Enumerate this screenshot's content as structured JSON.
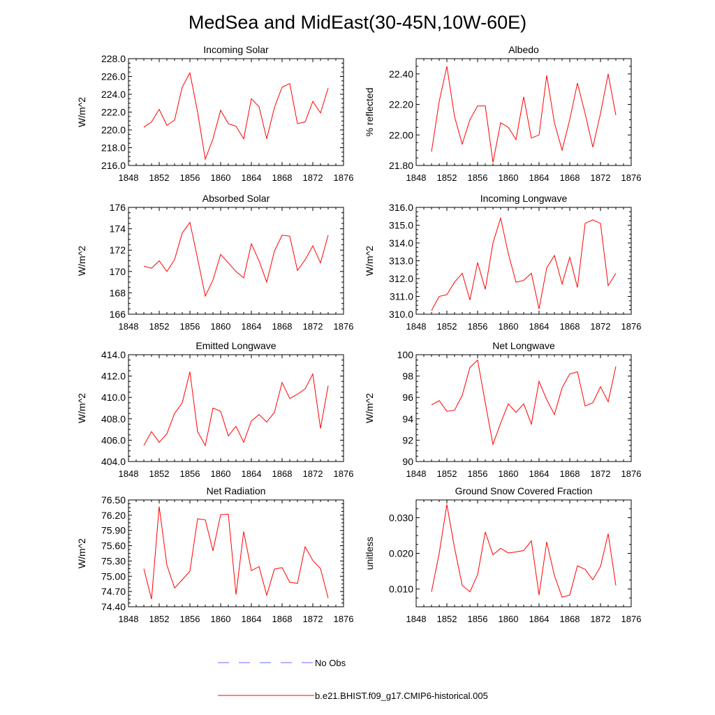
{
  "figure_title": "MedSea and MidEast(30-45N,10W-60E)",
  "legend": [
    {
      "label": "No Obs",
      "color": "#6a6aff",
      "style": "dashed"
    },
    {
      "label": "b.e21.BHIST.f09_g17.CMIP6-historical.005",
      "color": "#ff0000",
      "style": "solid"
    }
  ],
  "chart_data": [
    {
      "type": "line",
      "title": "Incoming Solar",
      "ylabel": "W/m^2",
      "xlabel": "",
      "xlim": [
        1848,
        1876
      ],
      "xticks": [
        1848,
        1852,
        1856,
        1860,
        1864,
        1868,
        1872,
        1876
      ],
      "ylim": [
        216.0,
        228.0
      ],
      "yticks": [
        216.0,
        218.0,
        220.0,
        222.0,
        224.0,
        226.0,
        228.0
      ],
      "ytick_labels": [
        "216.0",
        "218.0",
        "220.0",
        "222.0",
        "224.0",
        "226.0",
        "228.0"
      ],
      "series": [
        {
          "name": "b.e21.BHIST.f09_g17.CMIP6-historical.005",
          "color": "#ff0000",
          "x": [
            1850,
            1851,
            1852,
            1853,
            1854,
            1855,
            1856,
            1857,
            1858,
            1859,
            1860,
            1861,
            1862,
            1863,
            1864,
            1865,
            1866,
            1867,
            1868,
            1869,
            1870,
            1871,
            1872,
            1873,
            1874
          ],
          "values": [
            220.3,
            220.9,
            222.3,
            220.5,
            221.1,
            224.8,
            226.4,
            222.0,
            216.7,
            219.0,
            222.2,
            220.7,
            220.4,
            219.0,
            223.5,
            222.6,
            219.0,
            222.5,
            224.8,
            225.2,
            220.7,
            220.9,
            223.2,
            221.9,
            224.7
          ]
        }
      ]
    },
    {
      "type": "line",
      "title": "Albedo",
      "ylabel": "% reflected",
      "xlabel": "",
      "xlim": [
        1848,
        1876
      ],
      "xticks": [
        1848,
        1852,
        1856,
        1860,
        1864,
        1868,
        1872,
        1876
      ],
      "ylim": [
        21.8,
        22.5
      ],
      "yticks": [
        21.8,
        22.0,
        22.2,
        22.4
      ],
      "ytick_labels": [
        "21.80",
        "22.00",
        "22.20",
        "22.40"
      ],
      "series": [
        {
          "name": "b.e21.BHIST.f09_g17.CMIP6-historical.005",
          "color": "#ff0000",
          "x": [
            1850,
            1851,
            1852,
            1853,
            1854,
            1855,
            1856,
            1857,
            1858,
            1859,
            1860,
            1861,
            1862,
            1863,
            1864,
            1865,
            1866,
            1867,
            1868,
            1869,
            1870,
            1871,
            1872,
            1873,
            1874
          ],
          "values": [
            21.89,
            22.22,
            22.45,
            22.12,
            21.94,
            22.1,
            22.19,
            22.19,
            21.82,
            22.08,
            22.05,
            21.97,
            22.25,
            21.98,
            22.0,
            22.39,
            22.08,
            21.9,
            22.1,
            22.34,
            22.14,
            21.92,
            22.14,
            22.4,
            22.13
          ]
        }
      ]
    },
    {
      "type": "line",
      "title": "Absorbed Solar",
      "ylabel": "W/m^2",
      "xlabel": "",
      "xlim": [
        1848,
        1876
      ],
      "xticks": [
        1848,
        1852,
        1856,
        1860,
        1864,
        1868,
        1872,
        1876
      ],
      "ylim": [
        166,
        176
      ],
      "yticks": [
        166,
        168,
        170,
        172,
        174,
        176
      ],
      "ytick_labels": [
        "166",
        "168",
        "170",
        "172",
        "174",
        "176"
      ],
      "series": [
        {
          "name": "b.e21.BHIST.f09_g17.CMIP6-historical.005",
          "color": "#ff0000",
          "x": [
            1850,
            1851,
            1852,
            1853,
            1854,
            1855,
            1856,
            1857,
            1858,
            1859,
            1860,
            1861,
            1862,
            1863,
            1864,
            1865,
            1866,
            1867,
            1868,
            1869,
            1870,
            1871,
            1872,
            1873,
            1874
          ],
          "values": [
            170.5,
            170.3,
            171.0,
            170.0,
            171.1,
            173.6,
            174.6,
            171.2,
            167.7,
            169.2,
            171.6,
            170.8,
            170.0,
            169.4,
            172.6,
            171.0,
            169.0,
            171.9,
            173.4,
            173.3,
            170.1,
            171.1,
            172.4,
            170.8,
            173.4
          ]
        }
      ]
    },
    {
      "type": "line",
      "title": "Incoming Longwave",
      "ylabel": "W/m^2",
      "xlabel": "",
      "xlim": [
        1848,
        1876
      ],
      "xticks": [
        1848,
        1852,
        1856,
        1860,
        1864,
        1868,
        1872,
        1876
      ],
      "ylim": [
        310.0,
        316.0
      ],
      "yticks": [
        310.0,
        311.0,
        312.0,
        313.0,
        314.0,
        315.0,
        316.0
      ],
      "ytick_labels": [
        "310.0",
        "311.0",
        "312.0",
        "313.0",
        "314.0",
        "315.0",
        "316.0"
      ],
      "series": [
        {
          "name": "b.e21.BHIST.f09_g17.CMIP6-historical.005",
          "color": "#ff0000",
          "x": [
            1850,
            1851,
            1852,
            1853,
            1854,
            1855,
            1856,
            1857,
            1858,
            1859,
            1860,
            1861,
            1862,
            1863,
            1864,
            1865,
            1866,
            1867,
            1868,
            1869,
            1870,
            1871,
            1872,
            1873,
            1874
          ],
          "values": [
            310.2,
            311.0,
            311.1,
            311.8,
            312.3,
            310.8,
            312.9,
            311.4,
            314.0,
            315.4,
            313.4,
            311.8,
            311.9,
            312.3,
            310.3,
            312.6,
            313.3,
            311.7,
            313.2,
            311.5,
            315.1,
            315.3,
            315.1,
            311.6,
            312.3
          ]
        }
      ]
    },
    {
      "type": "line",
      "title": "Emitted Longwave",
      "ylabel": "W/m^2",
      "xlabel": "",
      "xlim": [
        1848,
        1876
      ],
      "xticks": [
        1848,
        1852,
        1856,
        1860,
        1864,
        1868,
        1872,
        1876
      ],
      "ylim": [
        404.0,
        414.0
      ],
      "yticks": [
        404.0,
        406.0,
        408.0,
        410.0,
        412.0,
        414.0
      ],
      "ytick_labels": [
        "404.0",
        "406.0",
        "408.0",
        "410.0",
        "412.0",
        "414.0"
      ],
      "series": [
        {
          "name": "b.e21.BHIST.f09_g17.CMIP6-historical.005",
          "color": "#ff0000",
          "x": [
            1850,
            1851,
            1852,
            1853,
            1854,
            1855,
            1856,
            1857,
            1858,
            1859,
            1860,
            1861,
            1862,
            1863,
            1864,
            1865,
            1866,
            1867,
            1868,
            1869,
            1870,
            1871,
            1872,
            1873,
            1874
          ],
          "values": [
            405.5,
            406.8,
            405.8,
            406.6,
            408.5,
            409.5,
            412.4,
            406.8,
            405.5,
            409.0,
            408.7,
            406.4,
            407.3,
            405.8,
            407.8,
            408.4,
            407.7,
            408.6,
            411.4,
            409.9,
            410.3,
            410.8,
            412.2,
            407.1,
            411.1
          ]
        }
      ]
    },
    {
      "type": "line",
      "title": "Net Longwave",
      "ylabel": "W/m^2",
      "xlabel": "",
      "xlim": [
        1848,
        1876
      ],
      "xticks": [
        1848,
        1852,
        1856,
        1860,
        1864,
        1868,
        1872,
        1876
      ],
      "ylim": [
        90,
        100
      ],
      "yticks": [
        90,
        92,
        94,
        96,
        98,
        100
      ],
      "ytick_labels": [
        "90",
        "92",
        "94",
        "96",
        "98",
        "100"
      ],
      "series": [
        {
          "name": "b.e21.BHIST.f09_g17.CMIP6-historical.005",
          "color": "#ff0000",
          "x": [
            1850,
            1851,
            1852,
            1853,
            1854,
            1855,
            1856,
            1857,
            1858,
            1859,
            1860,
            1861,
            1862,
            1863,
            1864,
            1865,
            1866,
            1867,
            1868,
            1869,
            1870,
            1871,
            1872,
            1873,
            1874
          ],
          "values": [
            95.3,
            95.7,
            94.7,
            94.8,
            96.2,
            98.8,
            99.5,
            95.5,
            91.6,
            93.6,
            95.4,
            94.6,
            95.4,
            93.5,
            97.5,
            95.8,
            94.4,
            96.9,
            98.2,
            98.4,
            95.2,
            95.5,
            97.0,
            95.6,
            98.9
          ]
        }
      ]
    },
    {
      "type": "line",
      "title": "Net Radiation",
      "ylabel": "W/m^2",
      "xlabel": "",
      "xlim": [
        1848,
        1876
      ],
      "xticks": [
        1848,
        1852,
        1856,
        1860,
        1864,
        1868,
        1872,
        1876
      ],
      "ylim": [
        74.4,
        76.5
      ],
      "yticks": [
        74.4,
        74.7,
        75.0,
        75.3,
        75.6,
        75.9,
        76.2,
        76.5
      ],
      "ytick_labels": [
        "74.40",
        "74.70",
        "75.00",
        "75.30",
        "75.60",
        "75.90",
        "76.20",
        "76.50"
      ],
      "series": [
        {
          "name": "b.e21.BHIST.f09_g17.CMIP6-historical.005",
          "color": "#ff0000",
          "x": [
            1850,
            1851,
            1852,
            1853,
            1854,
            1855,
            1856,
            1857,
            1858,
            1859,
            1860,
            1861,
            1862,
            1863,
            1864,
            1865,
            1866,
            1867,
            1868,
            1869,
            1870,
            1871,
            1872,
            1873,
            1874
          ],
          "values": [
            75.15,
            74.55,
            76.37,
            75.22,
            74.77,
            74.93,
            75.1,
            76.13,
            76.11,
            75.5,
            76.21,
            76.22,
            74.64,
            75.88,
            75.11,
            75.19,
            74.63,
            75.14,
            75.17,
            74.88,
            74.86,
            75.58,
            75.31,
            75.15,
            74.57
          ]
        }
      ]
    },
    {
      "type": "line",
      "title": "Ground Snow Covered Fraction",
      "ylabel": "unitless",
      "xlabel": "",
      "xlim": [
        1848,
        1876
      ],
      "xticks": [
        1848,
        1852,
        1856,
        1860,
        1864,
        1868,
        1872,
        1876
      ],
      "ylim": [
        0.005,
        0.035
      ],
      "yticks": [
        0.01,
        0.02,
        0.03
      ],
      "ytick_labels": [
        "0.010",
        "0.020",
        "0.030"
      ],
      "series": [
        {
          "name": "b.e21.BHIST.f09_g17.CMIP6-historical.005",
          "color": "#ff0000",
          "x": [
            1850,
            1851,
            1852,
            1853,
            1854,
            1855,
            1856,
            1857,
            1858,
            1859,
            1860,
            1861,
            1862,
            1863,
            1864,
            1865,
            1866,
            1867,
            1868,
            1869,
            1870,
            1871,
            1872,
            1873,
            1874
          ],
          "values": [
            0.0092,
            0.02,
            0.0337,
            0.0215,
            0.011,
            0.0092,
            0.014,
            0.026,
            0.0196,
            0.0214,
            0.0201,
            0.0204,
            0.0208,
            0.0235,
            0.0083,
            0.0232,
            0.0138,
            0.0077,
            0.0083,
            0.0165,
            0.0155,
            0.0126,
            0.0163,
            0.0255,
            0.011
          ]
        }
      ]
    }
  ]
}
